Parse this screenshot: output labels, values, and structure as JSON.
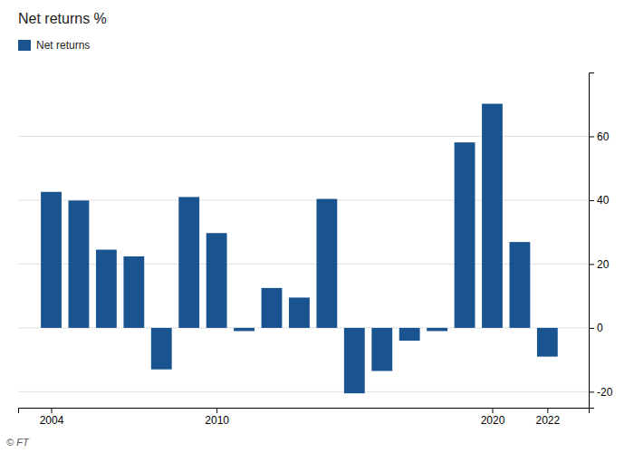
{
  "chart_data": {
    "type": "bar",
    "title": "Net returns %",
    "x": [
      2004,
      2005,
      2006,
      2007,
      2008,
      2009,
      2010,
      2011,
      2012,
      2013,
      2014,
      2015,
      2016,
      2017,
      2018,
      2019,
      2020,
      2021,
      2022
    ],
    "series": [
      {
        "name": "Net returns",
        "color": "#1a5490",
        "values": [
          42.6,
          39.9,
          24.5,
          22.4,
          -13.0,
          41.0,
          29.7,
          -1.0,
          12.5,
          9.5,
          40.4,
          -20.5,
          -13.5,
          -4.0,
          -1.0,
          58.1,
          70.2,
          26.9,
          -9.0
        ]
      }
    ],
    "xlim": [
      2002.8,
      2023.5
    ],
    "xticks": [
      2004,
      2010,
      2020,
      2022
    ],
    "ylim": [
      -25,
      80
    ],
    "yticks": [
      -20,
      0,
      20,
      40,
      60
    ],
    "grid": true,
    "legend": "upper left",
    "annotations": [
      "© FT"
    ]
  }
}
